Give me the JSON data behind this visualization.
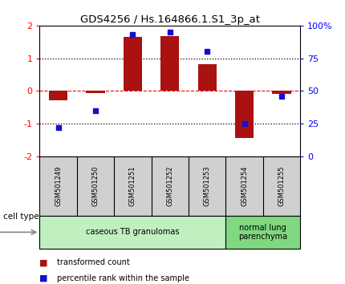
{
  "title": "GDS4256 / Hs.164866.1.S1_3p_at",
  "samples": [
    "GSM501249",
    "GSM501250",
    "GSM501251",
    "GSM501252",
    "GSM501253",
    "GSM501254",
    "GSM501255"
  ],
  "transformed_count": [
    -0.3,
    -0.07,
    1.65,
    1.67,
    0.82,
    -1.45,
    -0.08
  ],
  "percentile_rank": [
    22,
    35,
    93,
    95,
    80,
    25,
    46
  ],
  "bar_color": "#aa1111",
  "dot_color": "#1111cc",
  "ylim_left": [
    -2,
    2
  ],
  "ylim_right": [
    0,
    100
  ],
  "yticks_left": [
    -2,
    -1,
    0,
    1,
    2
  ],
  "yticks_right": [
    0,
    25,
    50,
    75,
    100
  ],
  "ytick_labels_right": [
    "0",
    "25",
    "50",
    "75",
    "100%"
  ],
  "cell_types": [
    {
      "label": "caseous TB granulomas",
      "samples": [
        0,
        1,
        2,
        3,
        4
      ],
      "color": "#c0f0c0"
    },
    {
      "label": "normal lung\nparenchyma",
      "samples": [
        5,
        6
      ],
      "color": "#80d880"
    }
  ],
  "cell_type_label": "cell type",
  "legend_items": [
    {
      "color": "#aa1111",
      "label": "transformed count"
    },
    {
      "color": "#1111cc",
      "label": "percentile rank within the sample"
    }
  ],
  "background_color": "#ffffff",
  "plot_bg_color": "#ffffff",
  "tick_label_area_color": "#d0d0d0",
  "bar_width": 0.5
}
